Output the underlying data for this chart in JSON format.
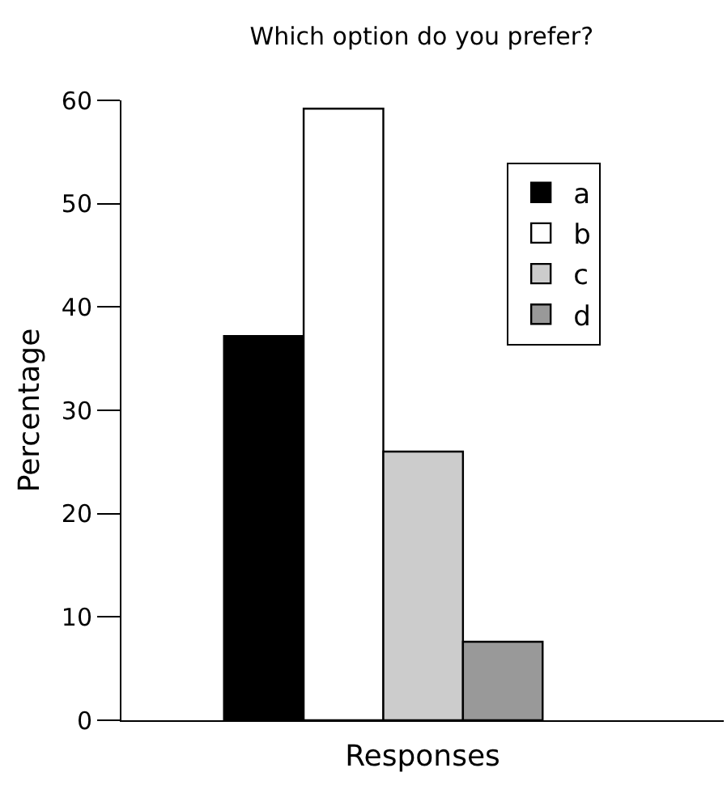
{
  "chart_data": {
    "type": "bar",
    "title": "Which option do you prefer?",
    "xlabel": "Responses",
    "ylabel": "Percentage",
    "categories": [
      null
    ],
    "series": [
      {
        "name": "a",
        "color": "#000000",
        "values": [
          37.2
        ]
      },
      {
        "name": "b",
        "color": "#ffffff",
        "values": [
          59.2
        ]
      },
      {
        "name": "c",
        "color": "#cccccc",
        "values": [
          26.0
        ]
      },
      {
        "name": "d",
        "color": "#999999",
        "values": [
          7.6
        ]
      }
    ],
    "ylim": [
      0,
      60
    ],
    "yticks": [
      0,
      10,
      20,
      30,
      40,
      50,
      60
    ],
    "legend": "top right"
  }
}
